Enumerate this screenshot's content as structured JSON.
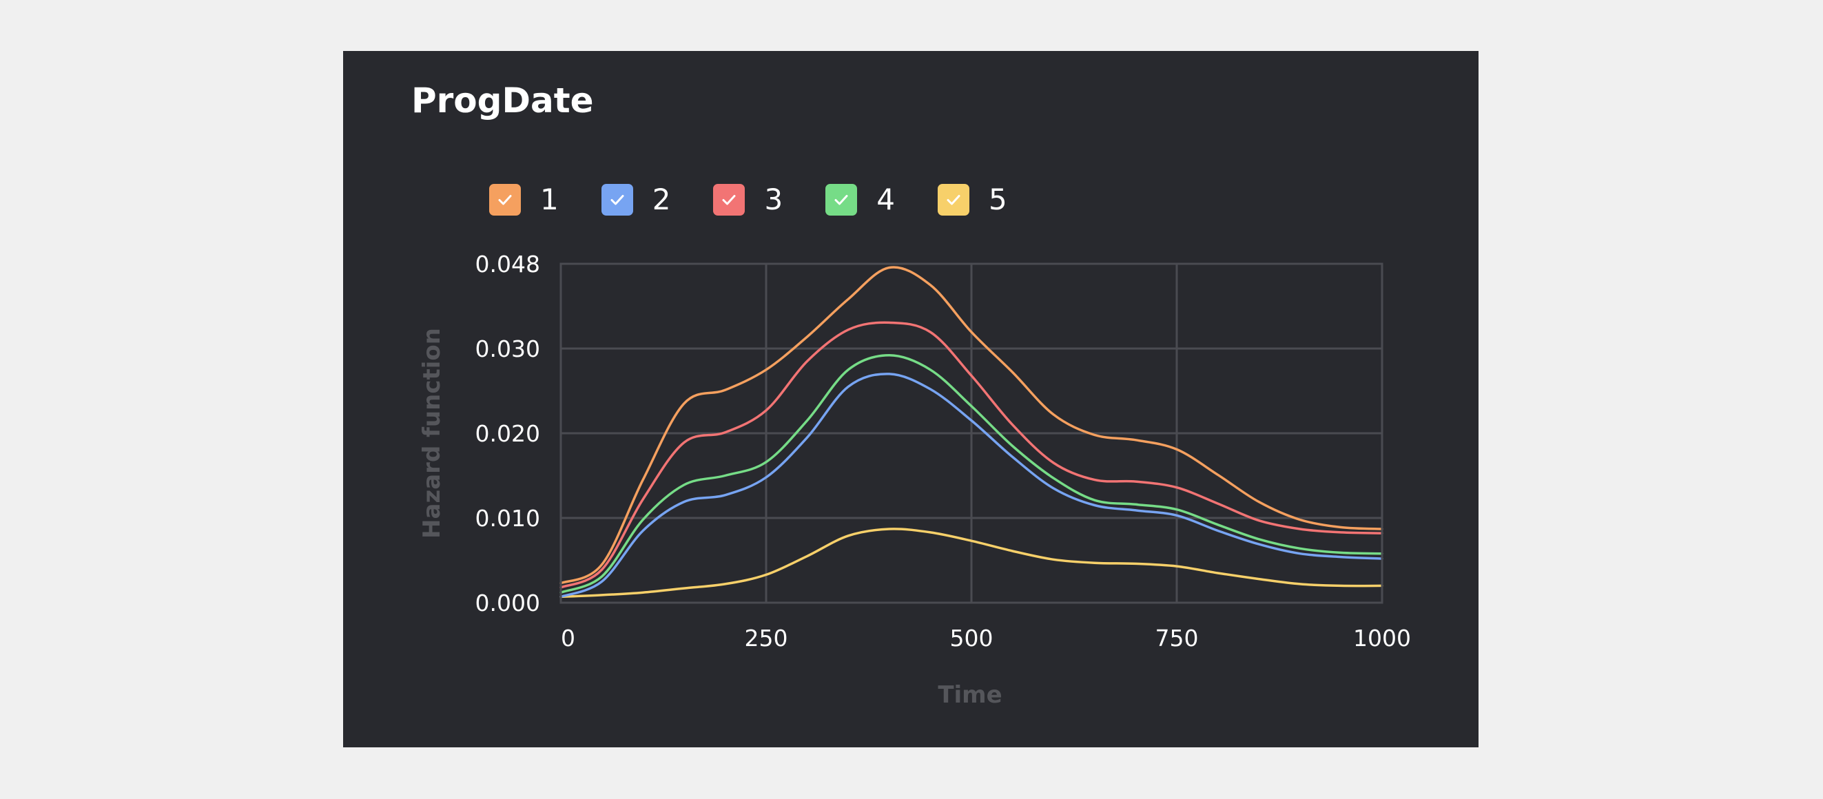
{
  "chart_data": {
    "type": "line",
    "title": "ProgDate",
    "xlabel": "Time",
    "ylabel": "Hazard function",
    "x_ticks": [
      0,
      250,
      500,
      750,
      1000
    ],
    "x_tick_labels": [
      "0",
      "250",
      "500",
      "750",
      "1000"
    ],
    "y_ticks": [
      0.0,
      0.01,
      0.02,
      0.03,
      0.048
    ],
    "y_tick_labels": [
      "0.000",
      "0.010",
      "0.020",
      "0.030",
      "0.048"
    ],
    "y_scale": "categorical-spaced ticks (equal spacing between printed tick values)",
    "xlim": [
      0,
      1000
    ],
    "grid": true,
    "legend_position": "top-left",
    "x": [
      0,
      50,
      100,
      150,
      200,
      250,
      300,
      350,
      400,
      450,
      500,
      550,
      600,
      650,
      700,
      750,
      800,
      850,
      900,
      950,
      1000
    ],
    "series": [
      {
        "name": "1",
        "color": "#f5a05f",
        "values": [
          0.0023,
          0.0045,
          0.0145,
          0.0235,
          0.0251,
          0.0275,
          0.0325,
          0.0405,
          0.0472,
          0.0435,
          0.0335,
          0.0272,
          0.0222,
          0.0198,
          0.0192,
          0.0181,
          0.0151,
          0.0119,
          0.0098,
          0.0089,
          0.0087
        ]
      },
      {
        "name": "2",
        "color": "#77a4f2",
        "values": [
          0.0007,
          0.0025,
          0.0085,
          0.0119,
          0.0127,
          0.0148,
          0.0195,
          0.0255,
          0.027,
          0.0252,
          0.0215,
          0.0172,
          0.0135,
          0.0115,
          0.0109,
          0.0103,
          0.0085,
          0.0069,
          0.0058,
          0.0054,
          0.0052
        ]
      },
      {
        "name": "3",
        "color": "#f27474",
        "values": [
          0.0018,
          0.0039,
          0.0122,
          0.0189,
          0.0201,
          0.0227,
          0.0285,
          0.034,
          0.0355,
          0.0335,
          0.0268,
          0.021,
          0.0165,
          0.0145,
          0.0143,
          0.0136,
          0.0117,
          0.0097,
          0.0087,
          0.0083,
          0.0082
        ]
      },
      {
        "name": "4",
        "color": "#76dc87",
        "values": [
          0.0012,
          0.0031,
          0.0098,
          0.0139,
          0.015,
          0.0166,
          0.0215,
          0.0275,
          0.0292,
          0.0275,
          0.0232,
          0.0185,
          0.0147,
          0.0121,
          0.0116,
          0.011,
          0.0092,
          0.0075,
          0.0064,
          0.0059,
          0.0058
        ]
      },
      {
        "name": "5",
        "color": "#f7d06a",
        "values": [
          0.0007,
          0.0009,
          0.0012,
          0.0017,
          0.0022,
          0.0033,
          0.0055,
          0.0079,
          0.0087,
          0.0083,
          0.0073,
          0.0061,
          0.0051,
          0.0047,
          0.0046,
          0.0043,
          0.0035,
          0.0028,
          0.0022,
          0.002,
          0.002
        ]
      }
    ]
  },
  "check_icon": "checkmark-icon"
}
